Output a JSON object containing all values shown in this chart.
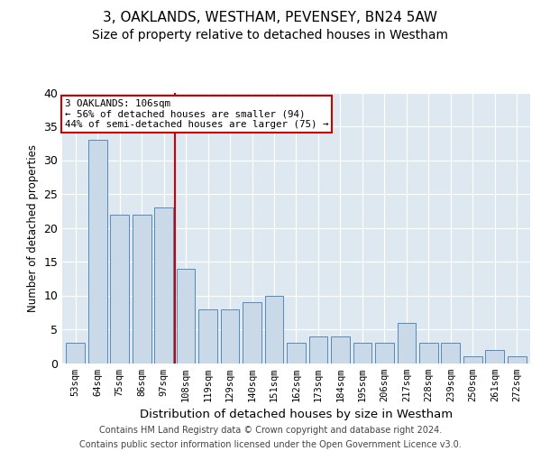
{
  "title1": "3, OAKLANDS, WESTHAM, PEVENSEY, BN24 5AW",
  "title2": "Size of property relative to detached houses in Westham",
  "xlabel": "Distribution of detached houses by size in Westham",
  "ylabel": "Number of detached properties",
  "categories": [
    "53sqm",
    "64sqm",
    "75sqm",
    "86sqm",
    "97sqm",
    "108sqm",
    "119sqm",
    "129sqm",
    "140sqm",
    "151sqm",
    "162sqm",
    "173sqm",
    "184sqm",
    "195sqm",
    "206sqm",
    "217sqm",
    "228sqm",
    "239sqm",
    "250sqm",
    "261sqm",
    "272sqm"
  ],
  "values": [
    3,
    33,
    22,
    22,
    23,
    14,
    8,
    8,
    9,
    10,
    3,
    4,
    4,
    3,
    3,
    6,
    3,
    3,
    1,
    2,
    1
  ],
  "bar_color": "#c9d9e8",
  "bar_edge_color": "#5588bb",
  "vline_x": 5.0,
  "vline_color": "#cc0000",
  "annotation_line1": "3 OAKLANDS: 106sqm",
  "annotation_line2": "← 56% of detached houses are smaller (94)",
  "annotation_line3": "44% of semi-detached houses are larger (75) →",
  "annotation_box_color": "#cc0000",
  "annotation_box_bg": "#ffffff",
  "footer1": "Contains HM Land Registry data © Crown copyright and database right 2024.",
  "footer2": "Contains public sector information licensed under the Open Government Licence v3.0.",
  "ylim": [
    0,
    40
  ],
  "yticks": [
    0,
    5,
    10,
    15,
    20,
    25,
    30,
    35,
    40
  ],
  "bg_color": "#dde8f0",
  "fig_bg_color": "#ffffff",
  "title1_fontsize": 11,
  "title2_fontsize": 10
}
